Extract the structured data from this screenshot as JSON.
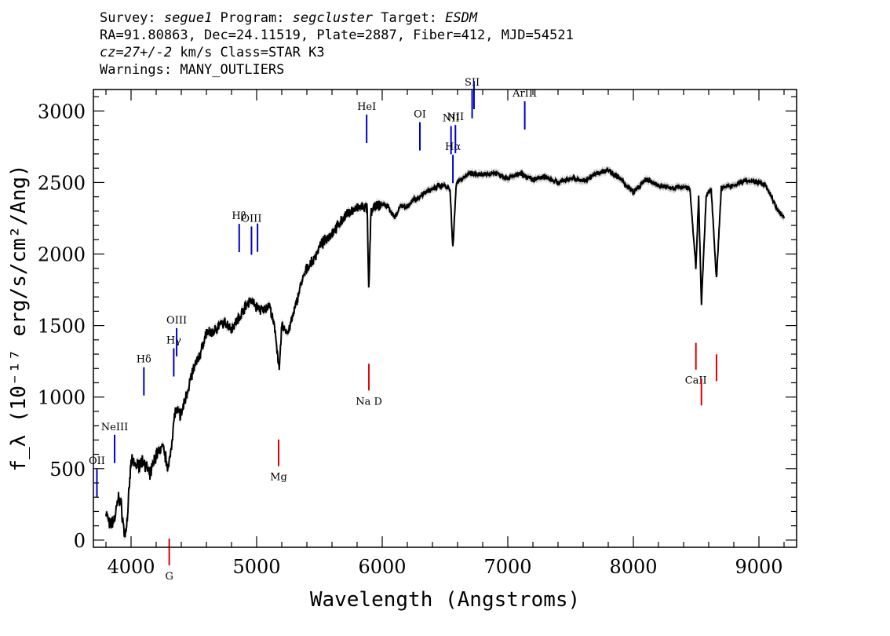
{
  "header": {
    "line1": [
      {
        "text": "Survey: ",
        "italic": false
      },
      {
        "text": "segue1",
        "italic": true
      },
      {
        "text": " Program: ",
        "italic": false
      },
      {
        "text": "segcluster",
        "italic": true
      },
      {
        "text": " Target: ",
        "italic": false
      },
      {
        "text": "ESDM",
        "italic": true
      }
    ],
    "line2": "RA=91.80863, Dec=24.11519, Plate=2887, Fiber=412, MJD=54521",
    "line3": [
      {
        "text": "cz=27+/-2",
        "italic": true
      },
      {
        "text": " km/s Class=STAR K3",
        "italic": false
      }
    ],
    "line4": "Warnings: MANY_OUTLIERS"
  },
  "chart_data": {
    "type": "line",
    "xlabel": "Wavelength (Angstroms)",
    "ylabel": "f_λ (10⁻¹⁷ erg/s/cm²/Ang)",
    "xlim": [
      3700,
      9300
    ],
    "ylim": [
      -50,
      3150
    ],
    "x_ticks": [
      4000,
      5000,
      6000,
      7000,
      8000,
      9000
    ],
    "y_ticks": [
      0,
      500,
      1000,
      1500,
      2000,
      2500,
      3000
    ],
    "grid": false,
    "colors": {
      "spectrum": "#000000",
      "error": "#b0b0b0",
      "emission": "#0000cc",
      "absorption": "#dd0000"
    },
    "spectrum": {
      "x": [
        3800,
        3830,
        3870,
        3900,
        3920,
        3950,
        3970,
        4000,
        4050,
        4100,
        4150,
        4200,
        4250,
        4300,
        4350,
        4400,
        4450,
        4500,
        4550,
        4600,
        4650,
        4700,
        4750,
        4800,
        4850,
        4900,
        4950,
        5000,
        5050,
        5100,
        5150,
        5180,
        5200,
        5250,
        5300,
        5350,
        5400,
        5450,
        5500,
        5550,
        5600,
        5650,
        5700,
        5750,
        5800,
        5850,
        5880,
        5893,
        5910,
        5950,
        6000,
        6050,
        6100,
        6150,
        6200,
        6250,
        6300,
        6350,
        6400,
        6450,
        6500,
        6540,
        6563,
        6590,
        6620,
        6700,
        6800,
        6900,
        7000,
        7100,
        7200,
        7300,
        7400,
        7500,
        7600,
        7700,
        7800,
        7900,
        8000,
        8100,
        8200,
        8300,
        8400,
        8450,
        8498,
        8520,
        8542,
        8580,
        8620,
        8662,
        8700,
        8800,
        8900,
        9000,
        9050,
        9100,
        9150,
        9200
      ],
      "y": [
        200,
        100,
        150,
        300,
        250,
        20,
        150,
        550,
        520,
        560,
        450,
        600,
        650,
        500,
        900,
        880,
        1050,
        1200,
        1300,
        1450,
        1450,
        1500,
        1520,
        1480,
        1540,
        1620,
        1680,
        1630,
        1600,
        1650,
        1450,
        1180,
        1500,
        1450,
        1600,
        1780,
        1900,
        1950,
        2050,
        2100,
        2150,
        2200,
        2260,
        2300,
        2320,
        2330,
        2320,
        1720,
        2300,
        2330,
        2350,
        2330,
        2250,
        2340,
        2330,
        2380,
        2400,
        2440,
        2450,
        2480,
        2480,
        2450,
        2040,
        2500,
        2520,
        2560,
        2550,
        2570,
        2530,
        2560,
        2520,
        2540,
        2500,
        2530,
        2510,
        2560,
        2590,
        2520,
        2430,
        2520,
        2480,
        2460,
        2470,
        2460,
        1900,
        2400,
        1650,
        2400,
        2460,
        1820,
        2460,
        2480,
        2520,
        2500,
        2480,
        2400,
        2300,
        2260
      ]
    },
    "emission_lines": [
      {
        "label": "OII",
        "x": 3728
      },
      {
        "label": "NeIII",
        "x": 3869
      },
      {
        "label": "Hδ",
        "x": 4102
      },
      {
        "label": "Hγ",
        "x": 4340
      },
      {
        "label": "OIII",
        "x": 4363
      },
      {
        "label": "Hβ",
        "x": 4861
      },
      {
        "label": "OIII",
        "x": 4959
      },
      {
        "label": "",
        "x": 5007
      },
      {
        "label": "HeI",
        "x": 5876
      },
      {
        "label": "OI",
        "x": 6300
      },
      {
        "label": "NII",
        "x": 6548
      },
      {
        "label": "Hα",
        "x": 6563
      },
      {
        "label": "NII",
        "x": 6583
      },
      {
        "label": "SII",
        "x": 6716
      },
      {
        "label": "",
        "x": 6731
      },
      {
        "label": "ArIII",
        "x": 7135
      }
    ],
    "absorption_lines": [
      {
        "label": "G",
        "x": 4304
      },
      {
        "label": "Mg",
        "x": 5175
      },
      {
        "label": "Na D",
        "x": 5894
      },
      {
        "label": "CaII",
        "x": 8498
      },
      {
        "label": "",
        "x": 8542
      },
      {
        "label": "",
        "x": 8662
      }
    ]
  }
}
